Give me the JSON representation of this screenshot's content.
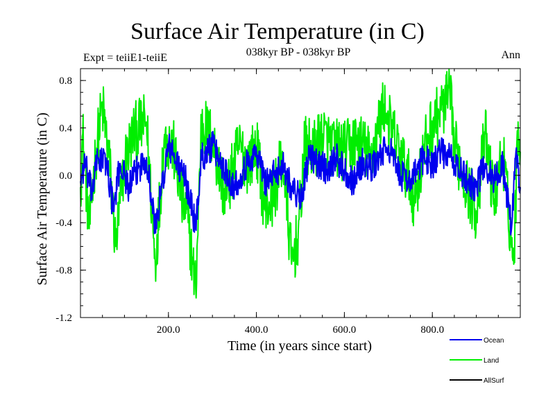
{
  "chart_data": {
    "type": "line",
    "title": "Surface Air Temperature (in C)",
    "subtitle": "038kyr BP - 038kyr BP",
    "left_label": "Expt = teiiE1-teiiE",
    "right_label": "Ann",
    "xlabel": "Time (in years since start)",
    "ylabel": "Surface Air Temperature (in C)",
    "xlim": [
      0,
      1000
    ],
    "ylim": [
      -1.2,
      0.9
    ],
    "xticks": [
      200,
      400,
      600,
      800
    ],
    "xtick_labels": [
      "200.0",
      "400.0",
      "600.0",
      "800.0"
    ],
    "yticks": [
      0.8,
      0.4,
      0.0,
      -0.4,
      -0.8,
      -1.2
    ],
    "ytick_labels": [
      "0.8",
      "0.4",
      "0.0",
      "-0.4",
      "-0.8",
      "-1.2"
    ],
    "grid": false,
    "legend_position": "bottom-right",
    "series": [
      {
        "name": "Land",
        "color": "#00ee00",
        "points": [
          [
            0,
            -0.1
          ],
          [
            5,
            0.35
          ],
          [
            10,
            0.1
          ],
          [
            20,
            -0.45
          ],
          [
            35,
            0.2
          ],
          [
            50,
            0.58
          ],
          [
            65,
            0.15
          ],
          [
            80,
            -0.6
          ],
          [
            100,
            0.1
          ],
          [
            120,
            0.35
          ],
          [
            150,
            0.45
          ],
          [
            170,
            -0.75
          ],
          [
            190,
            0.3
          ],
          [
            210,
            0.25
          ],
          [
            230,
            -0.2
          ],
          [
            245,
            -0.4
          ],
          [
            255,
            -0.75
          ],
          [
            262,
            -0.96
          ],
          [
            275,
            0.45
          ],
          [
            300,
            0.3
          ],
          [
            330,
            -0.2
          ],
          [
            360,
            0.25
          ],
          [
            380,
            0.1
          ],
          [
            400,
            0.25
          ],
          [
            420,
            -0.3
          ],
          [
            440,
            -0.15
          ],
          [
            460,
            0.15
          ],
          [
            480,
            -0.75
          ],
          [
            495,
            -0.5
          ],
          [
            510,
            0.25
          ],
          [
            530,
            0.2
          ],
          [
            550,
            0.35
          ],
          [
            570,
            0.25
          ],
          [
            600,
            0.2
          ],
          [
            630,
            0.3
          ],
          [
            660,
            0.15
          ],
          [
            690,
            0.6
          ],
          [
            700,
            0.45
          ],
          [
            730,
            0.15
          ],
          [
            760,
            -0.2
          ],
          [
            790,
            0.35
          ],
          [
            820,
            0.55
          ],
          [
            840,
            0.67
          ],
          [
            850,
            0.25
          ],
          [
            880,
            -0.1
          ],
          [
            900,
            -0.3
          ],
          [
            920,
            0.35
          ],
          [
            940,
            -0.2
          ],
          [
            960,
            0.2
          ],
          [
            985,
            -0.75
          ],
          [
            995,
            0.45
          ],
          [
            1000,
            0.2
          ]
        ]
      },
      {
        "name": "Ocean",
        "color": "#0000ee",
        "points": [
          [
            0,
            -0.05
          ],
          [
            10,
            0.1
          ],
          [
            25,
            -0.15
          ],
          [
            40,
            0.15
          ],
          [
            60,
            0.1
          ],
          [
            75,
            -0.3
          ],
          [
            90,
            0.1
          ],
          [
            110,
            -0.1
          ],
          [
            130,
            0.05
          ],
          [
            150,
            0.15
          ],
          [
            170,
            -0.45
          ],
          [
            185,
            -0.1
          ],
          [
            200,
            0.25
          ],
          [
            220,
            0.1
          ],
          [
            240,
            -0.05
          ],
          [
            255,
            -0.3
          ],
          [
            262,
            -0.45
          ],
          [
            275,
            0.15
          ],
          [
            300,
            0.25
          ],
          [
            320,
            0.1
          ],
          [
            350,
            -0.1
          ],
          [
            370,
            0.05
          ],
          [
            400,
            0.2
          ],
          [
            420,
            -0.05
          ],
          [
            440,
            0.0
          ],
          [
            460,
            0.1
          ],
          [
            480,
            -0.1
          ],
          [
            500,
            -0.2
          ],
          [
            520,
            0.15
          ],
          [
            540,
            0.1
          ],
          [
            560,
            0.05
          ],
          [
            580,
            0.15
          ],
          [
            600,
            0.05
          ],
          [
            620,
            -0.05
          ],
          [
            640,
            0.1
          ],
          [
            660,
            0.05
          ],
          [
            680,
            0.15
          ],
          [
            700,
            0.25
          ],
          [
            720,
            0.05
          ],
          [
            740,
            -0.05
          ],
          [
            760,
            0.0
          ],
          [
            780,
            0.15
          ],
          [
            800,
            0.1
          ],
          [
            820,
            0.2
          ],
          [
            840,
            0.15
          ],
          [
            860,
            0.05
          ],
          [
            880,
            -0.05
          ],
          [
            900,
            -0.1
          ],
          [
            920,
            0.1
          ],
          [
            940,
            -0.05
          ],
          [
            960,
            0.1
          ],
          [
            980,
            -0.45
          ],
          [
            990,
            0.2
          ],
          [
            1000,
            -0.1
          ]
        ]
      },
      {
        "name": "AllSurf",
        "color": "#000000",
        "points": []
      }
    ]
  }
}
